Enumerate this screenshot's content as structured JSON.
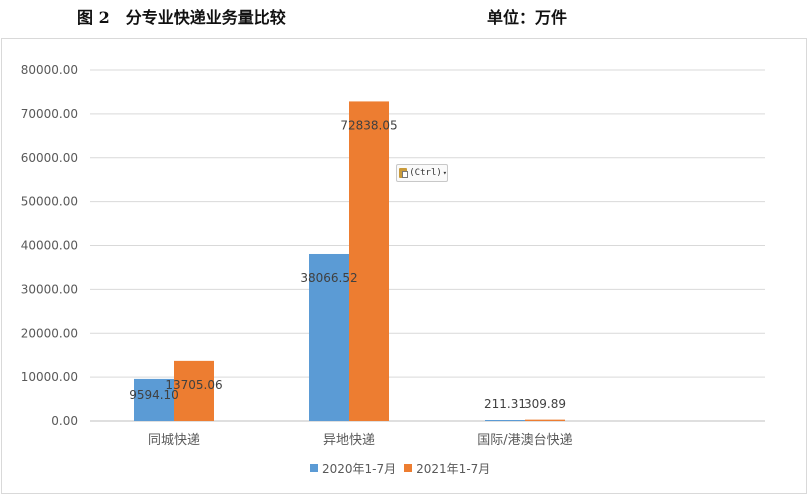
{
  "heading": {
    "title": "图 2　分专业快递业务量比较",
    "unit": "单位：万件"
  },
  "paste_options": {
    "label": "(Ctrl)",
    "caret": "▾"
  },
  "chart_data": {
    "type": "bar",
    "categories": [
      "同城快递",
      "异地快递",
      "国际/港澳台快递"
    ],
    "series": [
      {
        "name": "2020年1-7月",
        "color": "#5b9bd5",
        "values": [
          9594.1,
          38066.52,
          211.31
        ],
        "labels": [
          "9594.10",
          "38066.52",
          "211.31"
        ]
      },
      {
        "name": "2021年1-7月",
        "color": "#ed7d31",
        "values": [
          13705.06,
          72838.05,
          309.89
        ],
        "labels": [
          "13705.06",
          "72838.05",
          "309.89"
        ]
      }
    ],
    "yticks": [
      "0.00",
      "10000.00",
      "20000.00",
      "30000.00",
      "40000.00",
      "50000.00",
      "60000.00",
      "70000.00",
      "80000.00"
    ],
    "ylim": [
      0,
      80000
    ],
    "grid": true,
    "legend_position": "bottom"
  }
}
